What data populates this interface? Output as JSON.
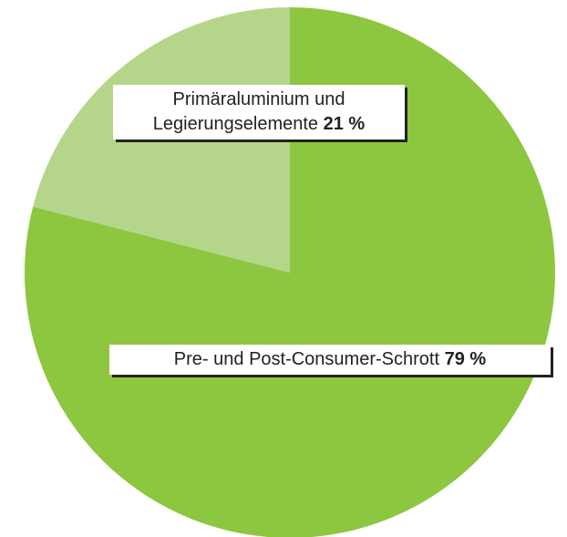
{
  "chart_data": {
    "type": "pie",
    "categories": [
      "Pre- und Post-Consumer-Schrott",
      "Primäraluminium und Legierungselemente"
    ],
    "values": [
      79,
      21
    ],
    "value_labels": [
      "79 %",
      "21 %"
    ],
    "colors": [
      "#8dc63f",
      "#b5d68a"
    ]
  }
}
